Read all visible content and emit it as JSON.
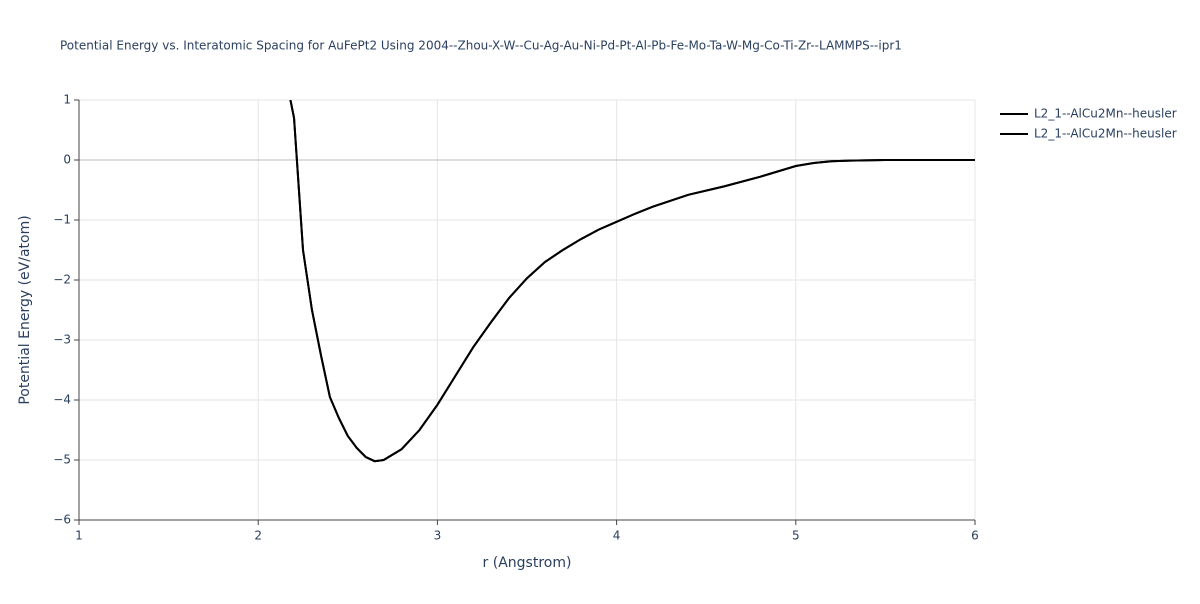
{
  "chart_data": {
    "type": "line",
    "title": "Potential Energy vs. Interatomic Spacing for AuFePt2 Using 2004--Zhou-X-W--Cu-Ag-Au-Ni-Pd-Pt-Al-Pb-Fe-Mo-Ta-W-Mg-Co-Ti-Zr--LAMMPS--ipr1",
    "x_label": "r (Angstrom)",
    "y_label": "Potential Energy (eV/atom)",
    "x": [
      2.18,
      2.2,
      2.25,
      2.3,
      2.35,
      2.4,
      2.45,
      2.5,
      2.55,
      2.6,
      2.65,
      2.7,
      2.8,
      2.9,
      3.0,
      3.1,
      3.2,
      3.3,
      3.4,
      3.5,
      3.6,
      3.7,
      3.8,
      3.9,
      4.0,
      4.1,
      4.2,
      4.3,
      4.4,
      4.6,
      4.8,
      5.0,
      5.1,
      5.2,
      5.3,
      5.5,
      6.0
    ],
    "series": [
      {
        "name": "L2_1--AlCu2Mn--heusler",
        "color": "#000000",
        "values": [
          1.0,
          0.7,
          -1.5,
          -2.5,
          -3.25,
          -3.95,
          -4.3,
          -4.6,
          -4.8,
          -4.95,
          -5.02,
          -5.0,
          -4.82,
          -4.5,
          -4.08,
          -3.6,
          -3.12,
          -2.7,
          -2.3,
          -1.97,
          -1.7,
          -1.5,
          -1.32,
          -1.16,
          -1.03,
          -0.9,
          -0.78,
          -0.68,
          -0.58,
          -0.44,
          -0.28,
          -0.1,
          -0.05,
          -0.02,
          -0.01,
          0,
          0
        ]
      },
      {
        "name": "L2_1--AlCu2Mn--heusler",
        "color": "#000000",
        "values": [
          1.0,
          0.7,
          -1.5,
          -2.5,
          -3.25,
          -3.95,
          -4.3,
          -4.6,
          -4.8,
          -4.95,
          -5.02,
          -5.0,
          -4.82,
          -4.5,
          -4.08,
          -3.6,
          -3.12,
          -2.7,
          -2.3,
          -1.97,
          -1.7,
          -1.5,
          -1.32,
          -1.16,
          -1.03,
          -0.9,
          -0.78,
          -0.68,
          -0.58,
          -0.44,
          -0.28,
          -0.1,
          -0.05,
          -0.02,
          -0.01,
          0,
          0
        ]
      }
    ],
    "xlim": [
      1,
      6
    ],
    "ylim": [
      -6,
      1
    ],
    "xticks": [
      1,
      2,
      3,
      4,
      5,
      6
    ],
    "yticks": [
      1,
      0,
      {
        "value": -1,
        "label": "−1"
      },
      {
        "value": -2,
        "label": "−2"
      },
      {
        "value": -3,
        "label": "−3"
      },
      {
        "value": -4,
        "label": "−4"
      },
      {
        "value": -5,
        "label": "−5"
      },
      {
        "value": -6,
        "label": "−6"
      }
    ],
    "grid": true,
    "legend": "top-right"
  }
}
